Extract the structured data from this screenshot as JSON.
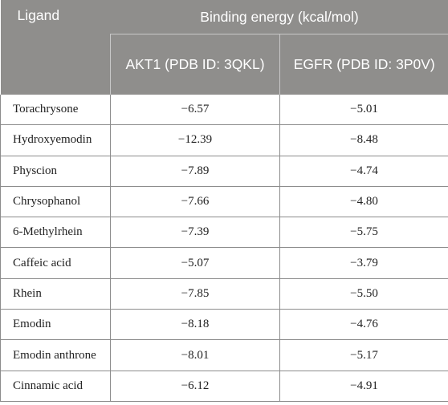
{
  "header": {
    "ligand": "Ligand",
    "binding_energy": "Binding energy (kcal/mol)",
    "akt1": "AKT1 (PDB ID: 3QKL)",
    "egfr": "EGFR (PDB ID: 3P0V)"
  },
  "rows": [
    {
      "ligand": "Torachrysone",
      "akt1": "−6.57",
      "egfr": "−5.01"
    },
    {
      "ligand": "Hydroxyemodin",
      "akt1": "−12.39",
      "egfr": "−8.48"
    },
    {
      "ligand": "Physcion",
      "akt1": "−7.89",
      "egfr": "−4.74"
    },
    {
      "ligand": "Chrysophanol",
      "akt1": "−7.66",
      "egfr": "−4.80"
    },
    {
      "ligand": "6-Methylrhein",
      "akt1": "−7.39",
      "egfr": "−5.75"
    },
    {
      "ligand": "Caffeic acid",
      "akt1": "−5.07",
      "egfr": "−3.79"
    },
    {
      "ligand": "Rhein",
      "akt1": "−7.85",
      "egfr": "−5.50"
    },
    {
      "ligand": "Emodin",
      "akt1": "−8.18",
      "egfr": "−4.76"
    },
    {
      "ligand": "Emodin anthrone",
      "akt1": "−8.01",
      "egfr": "−5.17"
    },
    {
      "ligand": "Cinnamic acid",
      "akt1": "−6.12",
      "egfr": "−4.91"
    }
  ]
}
